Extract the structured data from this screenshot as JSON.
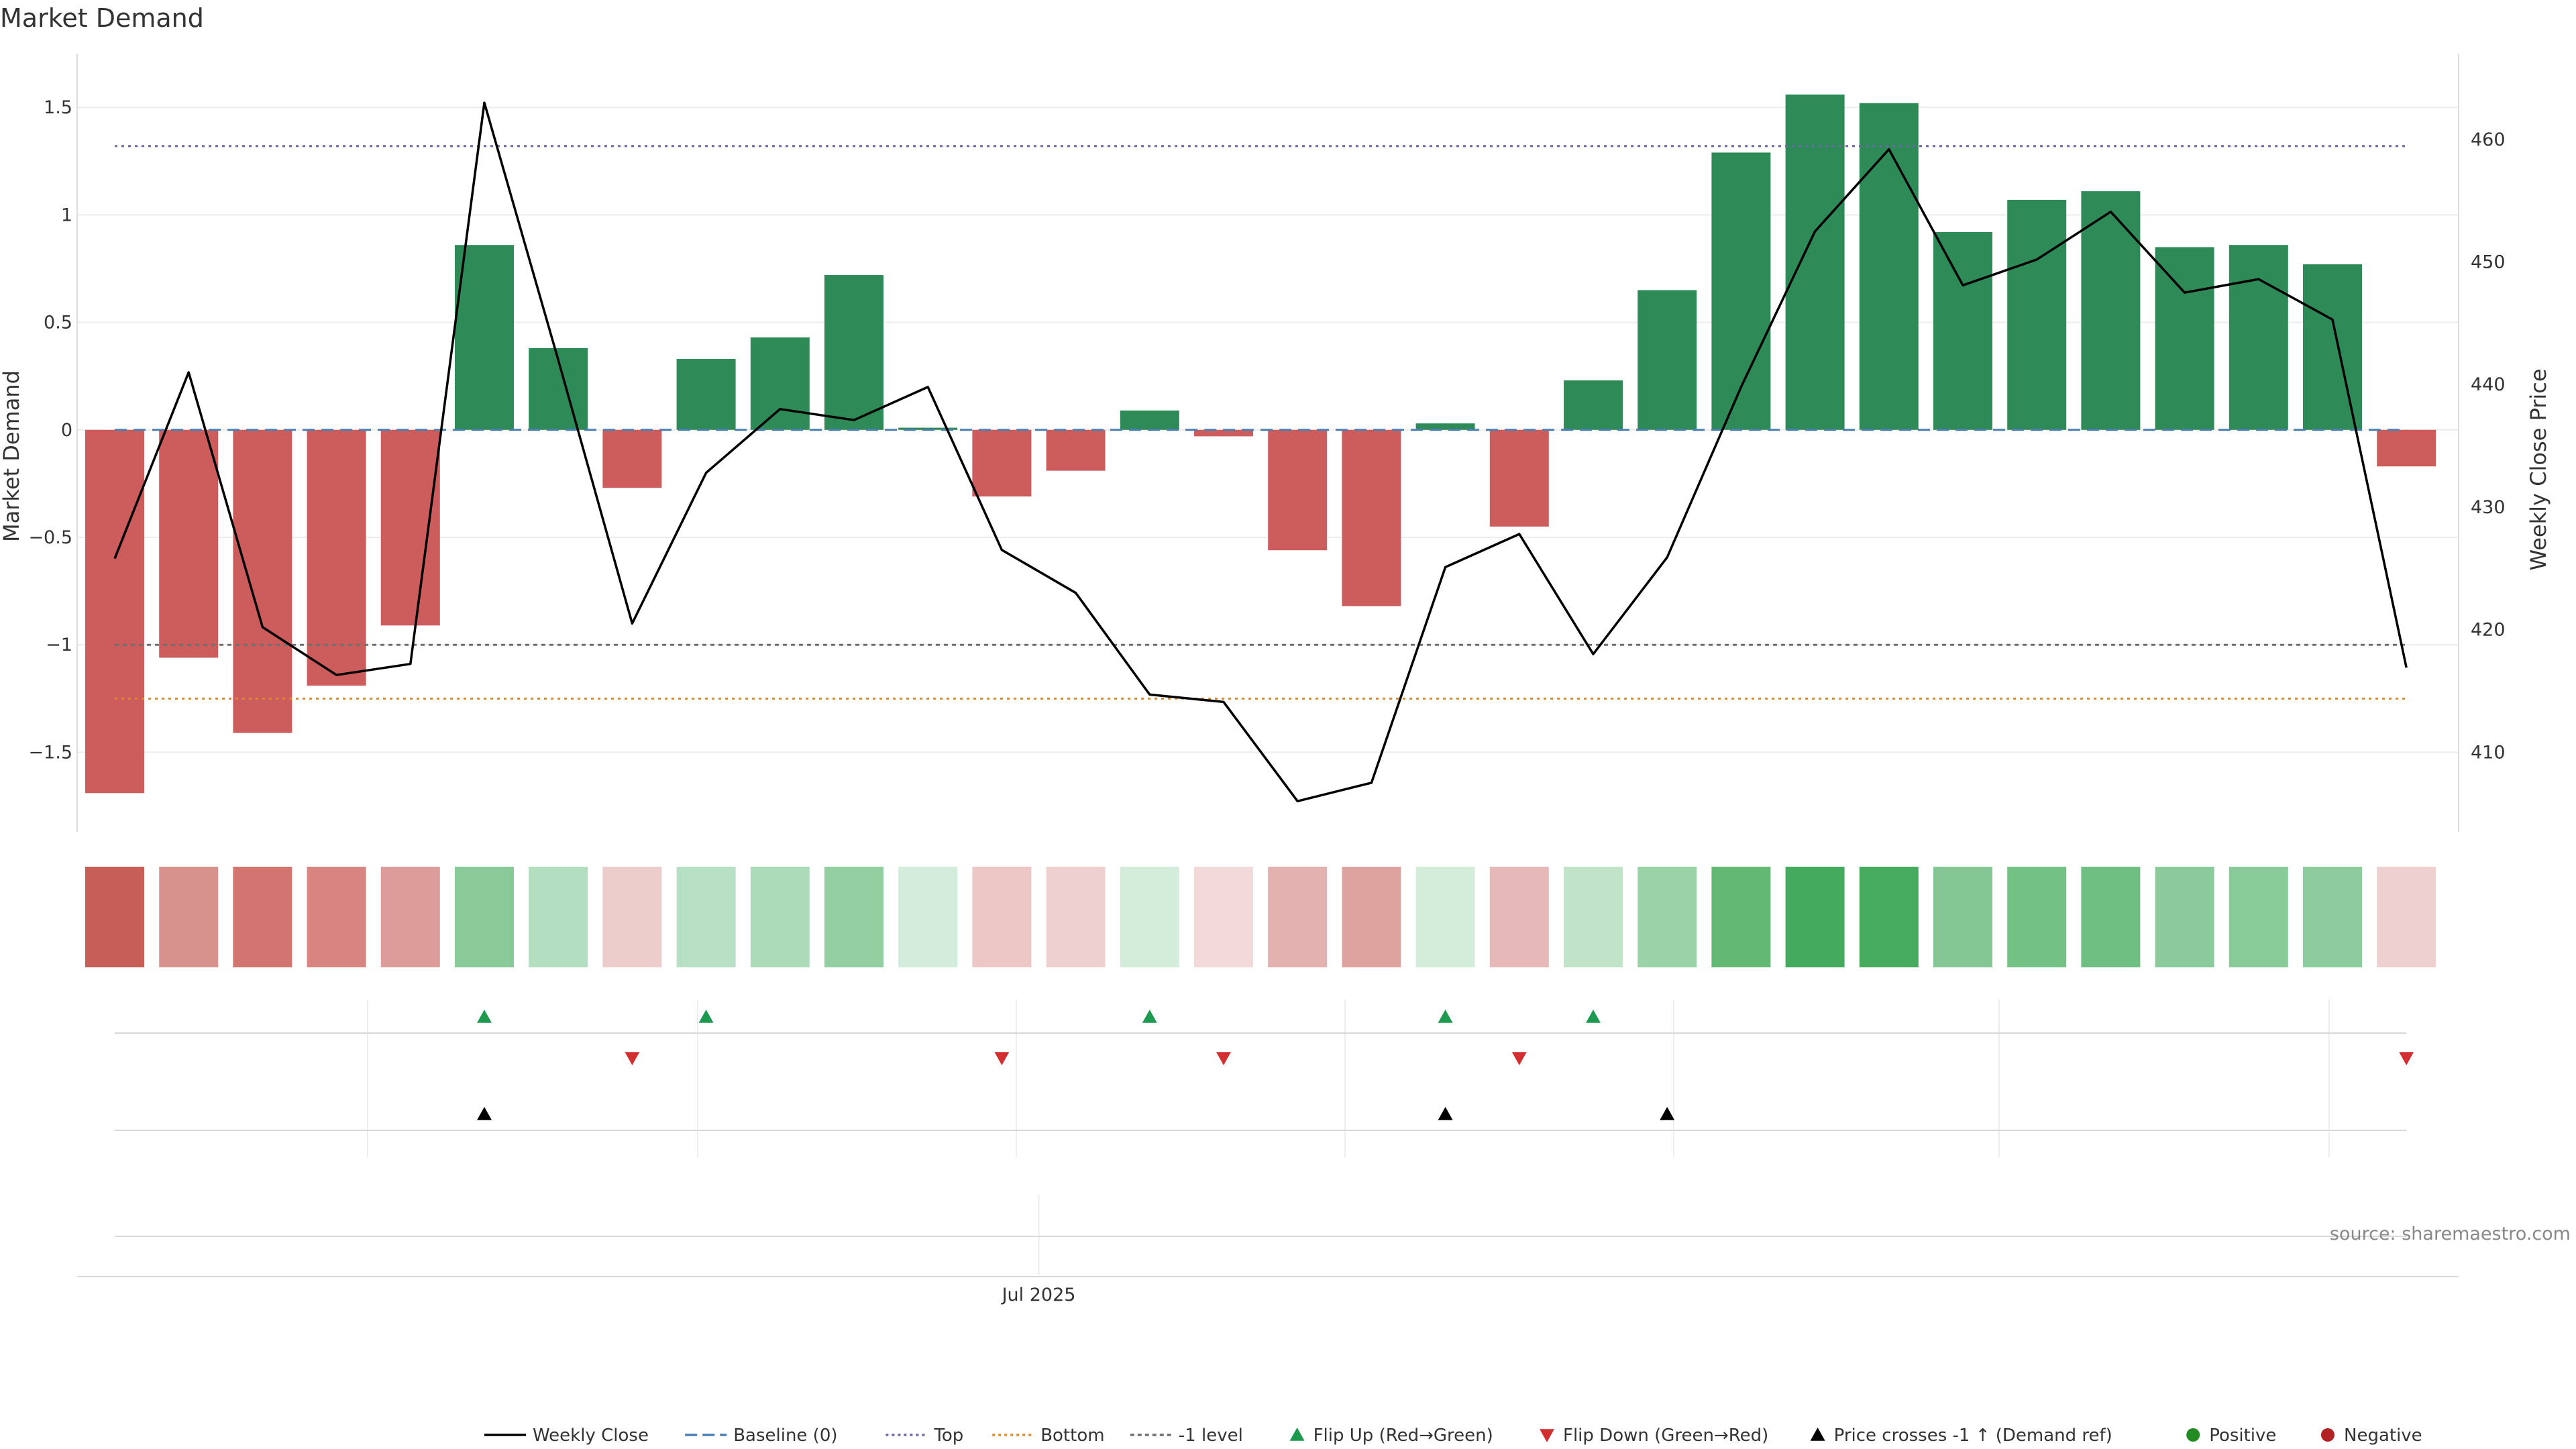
{
  "chart_data": {
    "type": "bar",
    "title": "Market Demand",
    "ylabel_left": "Market Demand",
    "ylabel_right": "Weekly Close Price",
    "ylim_left": [
      -1.87,
      1.75
    ],
    "ylim_right": [
      403.5,
      467.0
    ],
    "yticks_left": [
      -1.5,
      -1,
      -0.5,
      0,
      0.5,
      1,
      1.5
    ],
    "yticks_left_labels": [
      "−1.5",
      "−1",
      "−0.5",
      "0",
      "0.5",
      "1",
      "1.5"
    ],
    "yticks_right": [
      410,
      420,
      430,
      440,
      450,
      460
    ],
    "yticks_right_labels": [
      "410",
      "420",
      "430",
      "440",
      "450",
      "460"
    ],
    "x_tick_label": "Jul 2025",
    "x_tick_index": 12.5,
    "demand": [
      -1.69,
      -1.06,
      -1.41,
      -1.19,
      -0.91,
      0.86,
      0.38,
      -0.27,
      0.33,
      0.43,
      0.72,
      0.01,
      -0.31,
      -0.19,
      0.09,
      -0.03,
      -0.56,
      -0.82,
      0.03,
      -0.45,
      0.23,
      0.65,
      1.29,
      1.56,
      1.52,
      0.92,
      1.07,
      1.11,
      0.85,
      0.86,
      0.77,
      -0.17
    ],
    "close": [
      425.8,
      441.0,
      420.2,
      416.3,
      417.2,
      463.0,
      442.0,
      420.5,
      432.8,
      438.0,
      437.1,
      439.8,
      426.5,
      423.0,
      414.7,
      414.1,
      406.0,
      407.5,
      425.1,
      427.8,
      418.0,
      425.9,
      439.8,
      452.5,
      459.2,
      448.1,
      450.2,
      454.1,
      447.5,
      448.6,
      445.3,
      416.9
    ],
    "levels": {
      "baseline": 0,
      "top": 1.32,
      "bottom": -1.25,
      "minus_one": -1
    },
    "heat_colors": [
      "#c85e58",
      "#d8928d",
      "#d27570",
      "#d88582",
      "#dc9c99",
      "#89ca98",
      "#b3dec0",
      "#edcdcc",
      "#b8e0c4",
      "#acdbba",
      "#93cfa1",
      "#d3ecdb",
      "#ecc7c6",
      "#edd0cf",
      "#d4edda",
      "#f2dadb",
      "#e3b2b0",
      "#dea39f",
      "#d4ecda",
      "#e6b9b8",
      "#c1e4c9",
      "#9bd2a7",
      "#63b874",
      "#44ab5e",
      "#46ab5f",
      "#84c794",
      "#74c186",
      "#6fbf82",
      "#8bcb9b",
      "#89ca99",
      "#8dcc9c",
      "#efd0d0"
    ],
    "flip_up": [
      5,
      8,
      14,
      18,
      20
    ],
    "flip_down": [
      7,
      12,
      15,
      19,
      31
    ],
    "price_cross": [
      5,
      18,
      21
    ],
    "legend": [
      {
        "key": "weekly_close",
        "label": "Weekly Close"
      },
      {
        "key": "baseline",
        "label": "Baseline (0)"
      },
      {
        "key": "top",
        "label": "Top"
      },
      {
        "key": "bottom",
        "label": "Bottom"
      },
      {
        "key": "minus_one",
        "label": "-1 level"
      },
      {
        "key": "flip_up",
        "label": "Flip Up (Red→Green)"
      },
      {
        "key": "flip_down",
        "label": "Flip Down (Green→Red)"
      },
      {
        "key": "price_cross",
        "label": "Price crosses -1 ↑ (Demand ref)"
      },
      {
        "key": "positive",
        "label": "Positive"
      },
      {
        "key": "negative",
        "label": "Negative"
      }
    ],
    "source": "source: sharemaestro.com"
  },
  "colors": {
    "positive": "#2e8b57",
    "negative": "#cd5c5c",
    "line": "#000000",
    "baseline": "#4a7fb0",
    "top": "#6a6aa8",
    "bottom": "#e08a2a",
    "minus_one": "#707070",
    "flip_up": "#1e9a50",
    "flip_down": "#d23030",
    "price_cross": "#000000",
    "legend_positive": "#228b22",
    "legend_negative": "#b22222"
  }
}
